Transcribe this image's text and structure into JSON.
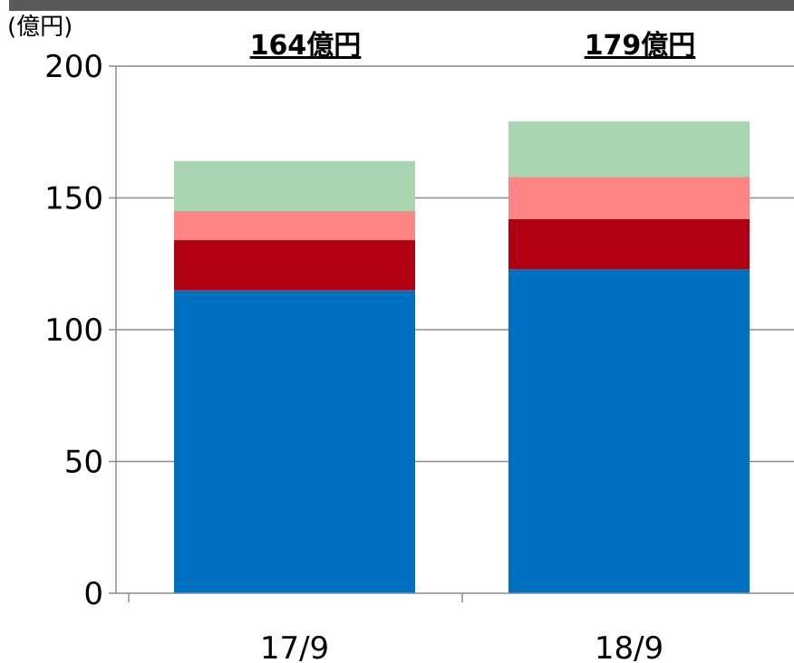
{
  "chart_data": {
    "type": "bar",
    "stacked": true,
    "unit_label": "(億円)",
    "categories": [
      "17/9",
      "18/9"
    ],
    "series": [
      {
        "color": "#0070c0",
        "values": [
          115,
          123
        ]
      },
      {
        "color": "#b00012",
        "values": [
          19,
          19
        ]
      },
      {
        "color": "#ff8585",
        "values": [
          11,
          16
        ]
      },
      {
        "color": "#a6d5b0",
        "values": [
          19,
          21
        ]
      }
    ],
    "totals": [
      "164億円",
      "179億円"
    ],
    "ylim": [
      0,
      200
    ],
    "yticks": [
      0,
      50,
      100,
      150,
      200
    ],
    "grid": true,
    "legend": "none"
  },
  "frame_color": "#595959"
}
